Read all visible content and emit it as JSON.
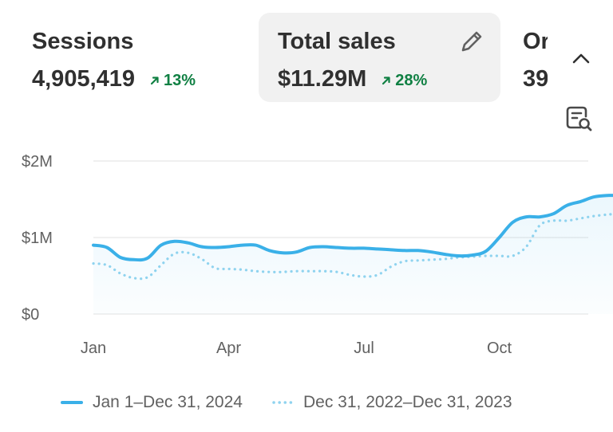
{
  "metrics": {
    "sessions": {
      "label": "Sessions",
      "value": "4,905,419",
      "change": "13%"
    },
    "total_sales": {
      "label": "Total sales",
      "value": "$11.29M",
      "change": "28%"
    },
    "orders": {
      "label": "Or",
      "value": "39"
    }
  },
  "icons": {
    "edit": "pencil-icon",
    "collapse": "chevron-up-icon",
    "analyze": "document-search-icon",
    "trend": "arrow-up-right-icon"
  },
  "colors": {
    "current": "#3ab0e8",
    "previous": "#8fd3ef",
    "positive": "#108043"
  },
  "chart_data": {
    "type": "line",
    "ylim": [
      0,
      2000000
    ],
    "y_ticks": [
      "$0",
      "$1M",
      "$2M"
    ],
    "x_ticks": [
      "Jan",
      "Apr",
      "Jul",
      "Oct"
    ],
    "grid": true,
    "legend_position": "bottom",
    "series": [
      {
        "name": "Jan 1–Dec 31, 2024",
        "style": "solid",
        "x": [
          0.0,
          0.3,
          0.6,
          0.9,
          1.2,
          1.5,
          1.8,
          2.1,
          2.4,
          2.7,
          3.0,
          3.3,
          3.6,
          3.9,
          4.2,
          4.5,
          4.8,
          5.1,
          5.4,
          5.7,
          6.0,
          6.3,
          6.6,
          6.9,
          7.2,
          7.5,
          7.8,
          8.1,
          8.4,
          8.7,
          9.0,
          9.3,
          9.6,
          9.9,
          10.2,
          10.5,
          10.8,
          11.1,
          11.4,
          11.65
        ],
        "values": [
          900000,
          870000,
          740000,
          710000,
          730000,
          900000,
          950000,
          930000,
          880000,
          870000,
          880000,
          900000,
          900000,
          830000,
          800000,
          810000,
          870000,
          880000,
          870000,
          860000,
          860000,
          850000,
          840000,
          830000,
          830000,
          810000,
          780000,
          760000,
          770000,
          820000,
          1000000,
          1200000,
          1270000,
          1270000,
          1310000,
          1420000,
          1470000,
          1530000,
          1550000,
          1550000
        ]
      },
      {
        "name": "Dec 31, 2022–Dec 31, 2023",
        "style": "dotted",
        "x": [
          0.0,
          0.3,
          0.6,
          0.9,
          1.2,
          1.5,
          1.8,
          2.1,
          2.4,
          2.7,
          3.0,
          3.3,
          3.6,
          3.9,
          4.2,
          4.5,
          4.8,
          5.1,
          5.4,
          5.7,
          6.0,
          6.3,
          6.6,
          6.9,
          7.2,
          7.5,
          7.8,
          8.1,
          8.4,
          8.7,
          9.0,
          9.3,
          9.6,
          9.9,
          10.2,
          10.5,
          10.8,
          11.1,
          11.4,
          11.65
        ],
        "values": [
          660000,
          640000,
          530000,
          470000,
          480000,
          640000,
          790000,
          800000,
          720000,
          600000,
          590000,
          580000,
          560000,
          550000,
          550000,
          560000,
          560000,
          560000,
          550000,
          510000,
          490000,
          510000,
          620000,
          690000,
          700000,
          710000,
          720000,
          740000,
          750000,
          760000,
          760000,
          760000,
          880000,
          1160000,
          1220000,
          1220000,
          1250000,
          1280000,
          1300000,
          1310000
        ]
      }
    ]
  }
}
